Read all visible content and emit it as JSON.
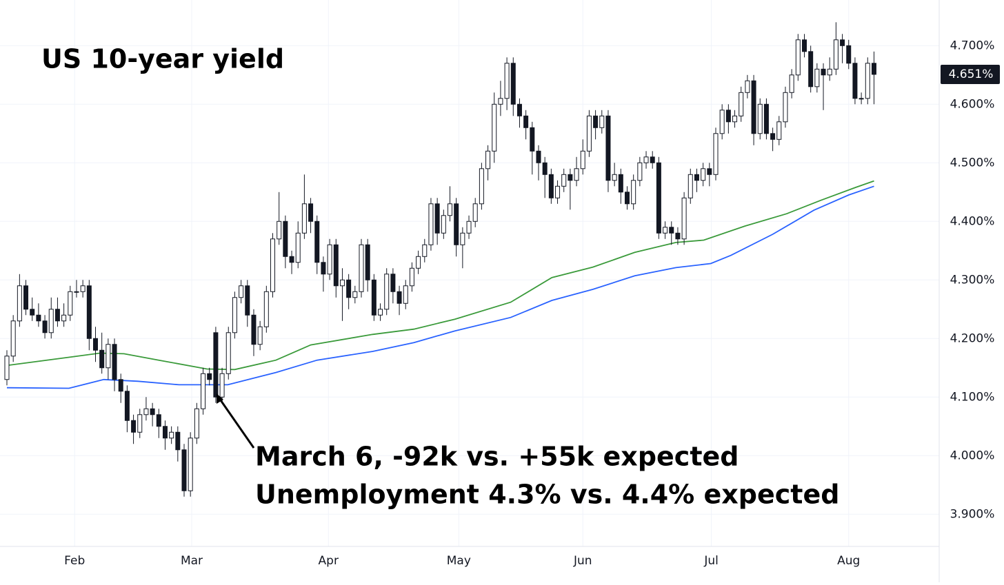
{
  "chart_data": {
    "type": "candlestick",
    "title": "US 10-year yield",
    "annotation": [
      "March 6, -92k vs. +55k expected",
      "Unemployment 4.3% vs. 4.4% expected"
    ],
    "up_color": "#ffffff",
    "down_color": "#131722",
    "ylim": [
      3.845,
      4.778
    ],
    "yticks": [
      {
        "value": 3.9,
        "label": "3.900%"
      },
      {
        "value": 4.0,
        "label": "4.000%"
      },
      {
        "value": 4.1,
        "label": "4.100%"
      },
      {
        "value": 4.2,
        "label": "4.200%"
      },
      {
        "value": 4.3,
        "label": "4.300%"
      },
      {
        "value": 4.4,
        "label": "4.400%"
      },
      {
        "value": 4.5,
        "label": "4.500%"
      },
      {
        "value": 4.6,
        "label": "4.600%"
      },
      {
        "value": 4.7,
        "label": "4.700%"
      }
    ],
    "xlim": [
      -1.09,
      147.3
    ],
    "xticks": [
      {
        "value": 10.7,
        "label": "Feb"
      },
      {
        "value": 29.2,
        "label": "Mar"
      },
      {
        "value": 50.8,
        "label": "Apr"
      },
      {
        "value": 71.4,
        "label": "May"
      },
      {
        "value": 91,
        "label": "Jun"
      },
      {
        "value": 111.3,
        "label": "Jul"
      },
      {
        "value": 133,
        "label": "Aug"
      }
    ],
    "grid": true,
    "last_price": {
      "value": 4.651,
      "label": "4.651%"
    },
    "candles": [
      [
        4.13,
        4.18,
        4.12,
        4.17
      ],
      [
        4.17,
        4.24,
        4.16,
        4.23
      ],
      [
        4.23,
        4.31,
        4.22,
        4.29
      ],
      [
        4.29,
        4.3,
        4.24,
        4.25
      ],
      [
        4.25,
        4.27,
        4.23,
        4.24
      ],
      [
        4.24,
        4.26,
        4.22,
        4.23
      ],
      [
        4.23,
        4.24,
        4.2,
        4.21
      ],
      [
        4.21,
        4.27,
        4.2,
        4.25
      ],
      [
        4.25,
        4.27,
        4.22,
        4.23
      ],
      [
        4.23,
        4.26,
        4.22,
        4.24
      ],
      [
        4.24,
        4.29,
        4.23,
        4.28
      ],
      [
        4.28,
        4.3,
        4.27,
        4.28
      ],
      [
        4.28,
        4.3,
        4.27,
        4.29
      ],
      [
        4.29,
        4.3,
        4.18,
        4.2
      ],
      [
        4.2,
        4.22,
        4.16,
        4.18
      ],
      [
        4.18,
        4.21,
        4.14,
        4.15
      ],
      [
        4.15,
        4.2,
        4.13,
        4.19
      ],
      [
        4.19,
        4.2,
        4.11,
        4.13
      ],
      [
        4.13,
        4.14,
        4.09,
        4.11
      ],
      [
        4.11,
        4.12,
        4.04,
        4.06
      ],
      [
        4.06,
        4.07,
        4.02,
        4.04
      ],
      [
        4.04,
        4.08,
        4.03,
        4.07
      ],
      [
        4.07,
        4.1,
        4.06,
        4.08
      ],
      [
        4.08,
        4.09,
        4.05,
        4.07
      ],
      [
        4.07,
        4.08,
        4.03,
        4.05
      ],
      [
        4.05,
        4.06,
        4.01,
        4.03
      ],
      [
        4.03,
        4.05,
        4.02,
        4.04
      ],
      [
        4.04,
        4.05,
        3.99,
        4.01
      ],
      [
        4.01,
        4.02,
        3.93,
        3.94
      ],
      [
        3.94,
        4.04,
        3.93,
        4.03
      ],
      [
        4.03,
        4.09,
        4.02,
        4.08
      ],
      [
        4.08,
        4.15,
        4.07,
        4.14
      ],
      [
        4.14,
        4.15,
        4.12,
        4.13
      ],
      [
        4.21,
        4.22,
        4.09,
        4.1
      ],
      [
        4.1,
        4.15,
        4.09,
        4.14
      ],
      [
        4.14,
        4.22,
        4.13,
        4.21
      ],
      [
        4.21,
        4.28,
        4.2,
        4.27
      ],
      [
        4.27,
        4.3,
        4.26,
        4.29
      ],
      [
        4.29,
        4.3,
        4.22,
        4.24
      ],
      [
        4.24,
        4.25,
        4.17,
        4.19
      ],
      [
        4.19,
        4.23,
        4.18,
        4.22
      ],
      [
        4.22,
        4.29,
        4.21,
        4.28
      ],
      [
        4.28,
        4.38,
        4.27,
        4.37
      ],
      [
        4.37,
        4.45,
        4.36,
        4.4
      ],
      [
        4.4,
        4.41,
        4.32,
        4.34
      ],
      [
        4.34,
        4.35,
        4.31,
        4.33
      ],
      [
        4.33,
        4.4,
        4.32,
        4.38
      ],
      [
        4.38,
        4.48,
        4.37,
        4.43
      ],
      [
        4.43,
        4.44,
        4.38,
        4.4
      ],
      [
        4.4,
        4.41,
        4.31,
        4.33
      ],
      [
        4.33,
        4.34,
        4.28,
        4.31
      ],
      [
        4.31,
        4.37,
        4.3,
        4.36
      ],
      [
        4.36,
        4.37,
        4.27,
        4.29
      ],
      [
        4.29,
        4.32,
        4.23,
        4.3
      ],
      [
        4.3,
        4.31,
        4.25,
        4.27
      ],
      [
        4.27,
        4.29,
        4.26,
        4.28
      ],
      [
        4.28,
        4.37,
        4.27,
        4.36
      ],
      [
        4.36,
        4.37,
        4.28,
        4.3
      ],
      [
        4.3,
        4.31,
        4.23,
        4.24
      ],
      [
        4.24,
        4.26,
        4.23,
        4.25
      ],
      [
        4.25,
        4.32,
        4.24,
        4.31
      ],
      [
        4.31,
        4.32,
        4.26,
        4.28
      ],
      [
        4.28,
        4.29,
        4.24,
        4.26
      ],
      [
        4.26,
        4.3,
        4.25,
        4.29
      ],
      [
        4.29,
        4.33,
        4.28,
        4.32
      ],
      [
        4.32,
        4.35,
        4.31,
        4.34
      ],
      [
        4.34,
        4.37,
        4.33,
        4.36
      ],
      [
        4.36,
        4.44,
        4.35,
        4.43
      ],
      [
        4.43,
        4.44,
        4.36,
        4.38
      ],
      [
        4.38,
        4.42,
        4.37,
        4.41
      ],
      [
        4.41,
        4.46,
        4.4,
        4.43
      ],
      [
        4.43,
        4.44,
        4.34,
        4.36
      ],
      [
        4.36,
        4.39,
        4.32,
        4.38
      ],
      [
        4.38,
        4.41,
        4.37,
        4.4
      ],
      [
        4.4,
        4.44,
        4.39,
        4.43
      ],
      [
        4.43,
        4.5,
        4.42,
        4.49
      ],
      [
        4.49,
        4.53,
        4.47,
        4.52
      ],
      [
        4.52,
        4.62,
        4.5,
        4.6
      ],
      [
        4.6,
        4.64,
        4.58,
        4.61
      ],
      [
        4.61,
        4.68,
        4.59,
        4.67
      ],
      [
        4.67,
        4.68,
        4.58,
        4.6
      ],
      [
        4.6,
        4.61,
        4.56,
        4.58
      ],
      [
        4.58,
        4.59,
        4.54,
        4.56
      ],
      [
        4.56,
        4.57,
        4.48,
        4.52
      ],
      [
        4.52,
        4.53,
        4.47,
        4.5
      ],
      [
        4.5,
        4.51,
        4.44,
        4.48
      ],
      [
        4.48,
        4.49,
        4.43,
        4.44
      ],
      [
        4.44,
        4.47,
        4.43,
        4.46
      ],
      [
        4.46,
        4.49,
        4.45,
        4.48
      ],
      [
        4.48,
        4.49,
        4.42,
        4.47
      ],
      [
        4.47,
        4.51,
        4.46,
        4.49
      ],
      [
        4.49,
        4.54,
        4.48,
        4.52
      ],
      [
        4.52,
        4.59,
        4.51,
        4.58
      ],
      [
        4.58,
        4.59,
        4.54,
        4.56
      ],
      [
        4.56,
        4.59,
        4.55,
        4.58
      ],
      [
        4.58,
        4.59,
        4.45,
        4.47
      ],
      [
        4.47,
        4.5,
        4.46,
        4.48
      ],
      [
        4.48,
        4.49,
        4.43,
        4.45
      ],
      [
        4.45,
        4.46,
        4.42,
        4.43
      ],
      [
        4.43,
        4.48,
        4.42,
        4.47
      ],
      [
        4.47,
        4.51,
        4.46,
        4.5
      ],
      [
        4.5,
        4.52,
        4.49,
        4.51
      ],
      [
        4.51,
        4.52,
        4.49,
        4.5
      ],
      [
        4.5,
        4.51,
        4.37,
        4.38
      ],
      [
        4.38,
        4.4,
        4.37,
        4.39
      ],
      [
        4.39,
        4.4,
        4.36,
        4.38
      ],
      [
        4.38,
        4.39,
        4.36,
        4.37
      ],
      [
        4.37,
        4.45,
        4.36,
        4.44
      ],
      [
        4.44,
        4.49,
        4.43,
        4.48
      ],
      [
        4.48,
        4.49,
        4.45,
        4.47
      ],
      [
        4.47,
        4.5,
        4.46,
        4.49
      ],
      [
        4.49,
        4.5,
        4.46,
        4.48
      ],
      [
        4.48,
        4.56,
        4.47,
        4.55
      ],
      [
        4.55,
        4.6,
        4.54,
        4.59
      ],
      [
        4.59,
        4.6,
        4.55,
        4.57
      ],
      [
        4.57,
        4.59,
        4.56,
        4.58
      ],
      [
        4.58,
        4.63,
        4.57,
        4.62
      ],
      [
        4.62,
        4.65,
        4.61,
        4.64
      ],
      [
        4.64,
        4.65,
        4.53,
        4.55
      ],
      [
        4.55,
        4.61,
        4.54,
        4.6
      ],
      [
        4.6,
        4.61,
        4.54,
        4.55
      ],
      [
        4.55,
        4.56,
        4.52,
        4.54
      ],
      [
        4.54,
        4.58,
        4.53,
        4.57
      ],
      [
        4.57,
        4.63,
        4.56,
        4.62
      ],
      [
        4.62,
        4.66,
        4.61,
        4.65
      ],
      [
        4.65,
        4.72,
        4.64,
        4.71
      ],
      [
        4.71,
        4.72,
        4.68,
        4.69
      ],
      [
        4.69,
        4.7,
        4.62,
        4.63
      ],
      [
        4.63,
        4.67,
        4.62,
        4.66
      ],
      [
        4.66,
        4.67,
        4.59,
        4.65
      ],
      [
        4.65,
        4.68,
        4.64,
        4.66
      ],
      [
        4.66,
        4.74,
        4.65,
        4.71
      ],
      [
        4.71,
        4.72,
        4.67,
        4.7
      ],
      [
        4.7,
        4.71,
        4.66,
        4.67
      ],
      [
        4.67,
        4.68,
        4.6,
        4.61
      ],
      [
        4.61,
        4.62,
        4.6,
        4.61
      ],
      [
        4.61,
        4.68,
        4.6,
        4.67
      ],
      [
        4.67,
        4.69,
        4.6,
        4.651
      ]
    ],
    "series": [
      {
        "color": "#3a9a3a",
        "x": [
          0,
          9.8,
          14.7,
          18.5,
          24,
          31.6,
          36,
          42.5,
          48,
          57.8,
          64.3,
          70.8,
          79.6,
          86.1,
          92.6,
          99.2,
          105.7,
          110.1,
          116.6,
          123.2,
          128.6,
          134.1,
          137
        ],
        "values": [
          4.154,
          4.168,
          4.175,
          4.174,
          4.163,
          4.148,
          4.147,
          4.163,
          4.189,
          4.207,
          4.216,
          4.233,
          4.262,
          4.304,
          4.322,
          4.347,
          4.364,
          4.368,
          4.392,
          4.413,
          4.436,
          4.458,
          4.469
        ]
      },
      {
        "color": "#2962ff",
        "x": [
          0,
          9.8,
          15.3,
          20.7,
          27.2,
          34.9,
          42.5,
          49,
          57.8,
          64.3,
          70.8,
          79.6,
          86.1,
          92.6,
          99.2,
          105.7,
          111.2,
          114.4,
          121,
          127.5,
          133,
          137
        ],
        "values": [
          4.116,
          4.115,
          4.13,
          4.127,
          4.121,
          4.121,
          4.142,
          4.163,
          4.178,
          4.193,
          4.213,
          4.236,
          4.265,
          4.284,
          4.307,
          4.321,
          4.328,
          4.342,
          4.378,
          4.419,
          4.445,
          4.46
        ]
      }
    ]
  }
}
